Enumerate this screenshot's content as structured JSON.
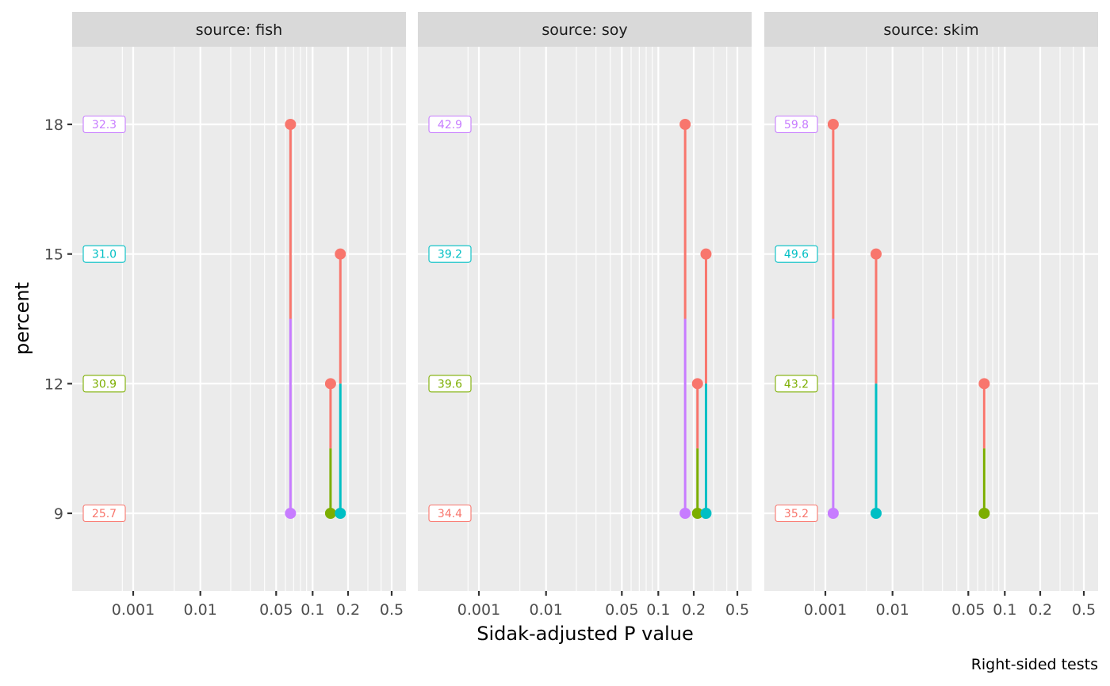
{
  "chart_data": {
    "type": "scatter",
    "subtype": "pairwise-p-value-plot",
    "xlabel": "Sidak-adjusted P value",
    "ylabel": "percent",
    "caption": "Right-sided tests",
    "x_scale": "p-value transform",
    "x_breaks": [
      0.001,
      0.01,
      0.05,
      0.1,
      0.2,
      0.5
    ],
    "x_tick_labels": [
      "0.001",
      "0.01",
      "0.05",
      "0.1",
      "0.2",
      "0.5"
    ],
    "x_minor_breaks": [
      0.0005,
      0.005,
      0.02,
      0.03,
      0.04,
      0.06,
      0.07,
      0.08,
      0.09,
      0.3,
      0.4
    ],
    "y_breaks": [
      9,
      12,
      15,
      18
    ],
    "y_tick_labels": [
      "9",
      "12",
      "15",
      "18"
    ],
    "ylim": [
      6.8,
      20.2
    ],
    "grid": true,
    "levels": [
      {
        "level": 9,
        "color": "#F8766D"
      },
      {
        "level": 12,
        "color": "#7CAE00"
      },
      {
        "level": 15,
        "color": "#00BFC4"
      },
      {
        "level": 18,
        "color": "#C77CFF"
      }
    ],
    "panels": [
      {
        "strip": "source: fish",
        "estimates": [
          {
            "level": 9,
            "value": "25.7"
          },
          {
            "level": 12,
            "value": "30.9"
          },
          {
            "level": 15,
            "value": "31.0"
          },
          {
            "level": 18,
            "value": "32.3"
          }
        ],
        "comparisons": [
          {
            "high": 18,
            "low": 9,
            "p": 0.066
          },
          {
            "high": 12,
            "low": 9,
            "p": 0.142
          },
          {
            "high": 15,
            "low": 9,
            "p": 0.172
          }
        ]
      },
      {
        "strip": "source: soy",
        "estimates": [
          {
            "level": 9,
            "value": "34.4"
          },
          {
            "level": 12,
            "value": "39.6"
          },
          {
            "level": 15,
            "value": "39.2"
          },
          {
            "level": 18,
            "value": "42.9"
          }
        ],
        "comparisons": [
          {
            "high": 18,
            "low": 9,
            "p": 0.169
          },
          {
            "high": 12,
            "low": 9,
            "p": 0.216
          },
          {
            "high": 15,
            "low": 9,
            "p": 0.257
          }
        ]
      },
      {
        "strip": "source: skim",
        "estimates": [
          {
            "level": 9,
            "value": "35.2"
          },
          {
            "level": 12,
            "value": "43.2"
          },
          {
            "level": 15,
            "value": "49.6"
          },
          {
            "level": 18,
            "value": "59.8"
          }
        ],
        "comparisons": [
          {
            "high": 18,
            "low": 9,
            "p": 0.00136
          },
          {
            "high": 15,
            "low": 9,
            "p": 0.00647
          },
          {
            "high": 12,
            "low": 9,
            "p": 0.068
          }
        ]
      }
    ]
  }
}
